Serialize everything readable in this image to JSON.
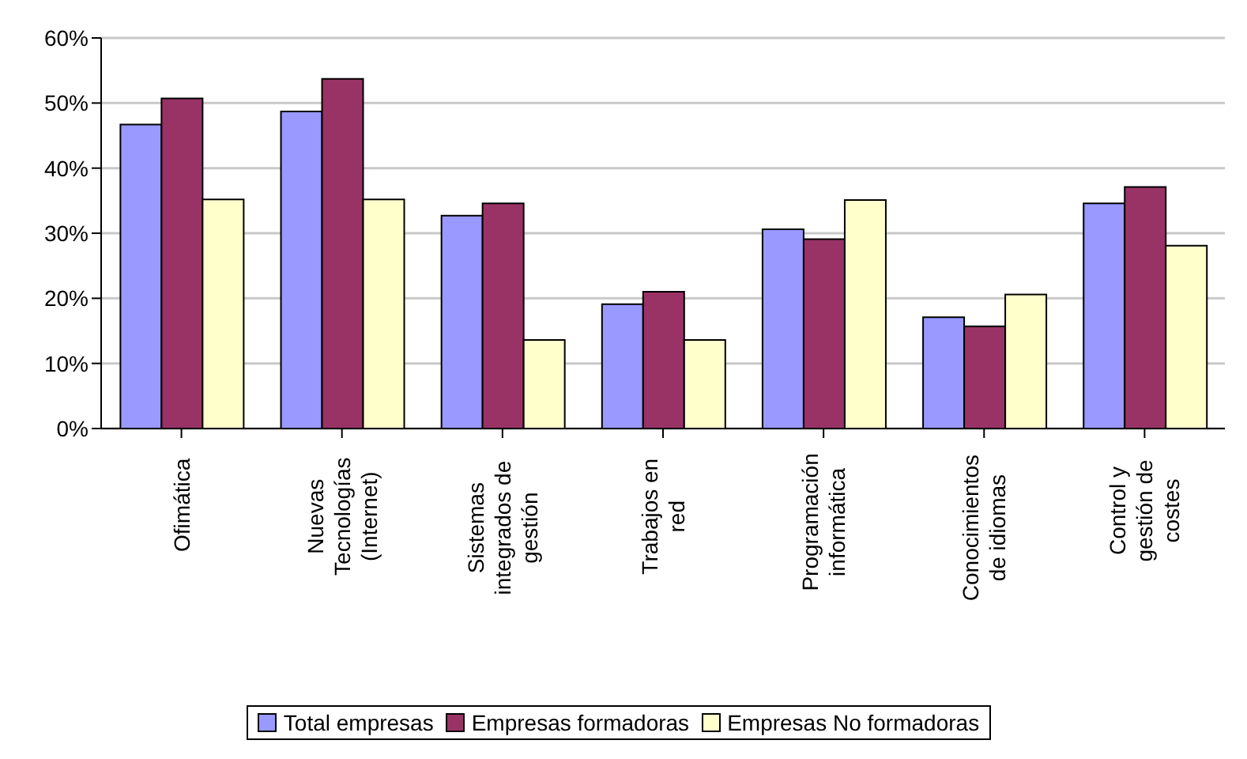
{
  "chart_data": {
    "type": "bar",
    "categories": [
      "Ofimática",
      "Nuevas Tecnologías (Internet)",
      "Sistemas integrados de gestión",
      "Trabajos en red",
      "Programación informática",
      "Conocimientos de idiomas",
      "Control y gestión de costes"
    ],
    "series": [
      {
        "name": "Total empresas",
        "color": "#9999ff",
        "values": [
          46.7,
          48.7,
          32.7,
          19.1,
          30.6,
          17.1,
          34.6
        ]
      },
      {
        "name": "Empresas formadoras",
        "color": "#993366",
        "values": [
          50.7,
          53.7,
          34.6,
          21,
          29.1,
          15.7,
          37.1
        ]
      },
      {
        "name": "Empresas No formadoras",
        "color": "#ffffcc",
        "values": [
          35.2,
          35.2,
          13.6,
          13.6,
          35.1,
          20.6,
          28.1
        ]
      }
    ],
    "ylim": [
      0,
      60
    ],
    "yticks": [
      {
        "value": 0,
        "label": "0%"
      },
      {
        "value": 10,
        "label": "10%"
      },
      {
        "value": 20,
        "label": "20%"
      },
      {
        "value": 30,
        "label": "30%"
      },
      {
        "value": 40,
        "label": "40%"
      },
      {
        "value": 50,
        "label": "50%"
      },
      {
        "value": 60,
        "label": "60%"
      }
    ],
    "grid": "y",
    "legend": "bottom"
  }
}
